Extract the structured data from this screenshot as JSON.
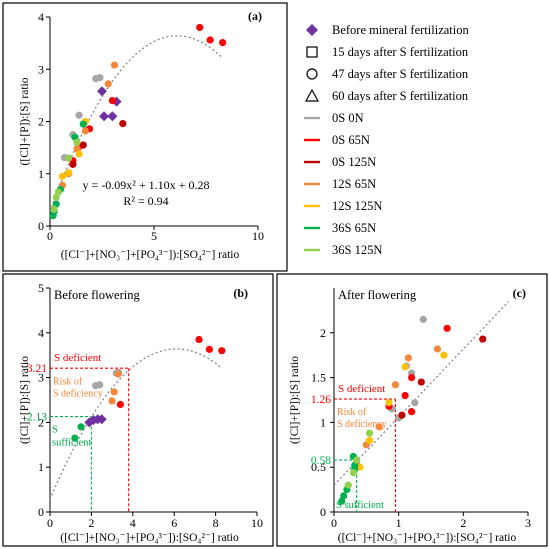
{
  "chart_data": [
    {
      "panel_label": "(a)",
      "type": "scatter",
      "xlabel": "([Cl⁻]+[NO₃⁻]+[PO₄³⁻]):[SO₄²⁻] ratio",
      "ylabel": "([Cl]+[P]):[S] ratio",
      "xlim": [
        0,
        10
      ],
      "ylim": [
        0,
        4
      ],
      "xticks": [
        "0",
        "5",
        "10"
      ],
      "yticks": [
        "0",
        "1",
        "2",
        "3",
        "4"
      ],
      "equation": "y = -0.09x² + 1.10x + 0.28",
      "r2": "R² = 0.94",
      "fit": {
        "a": -0.09,
        "b": 1.1,
        "c": 0.28,
        "x_range": [
          0,
          8.3
        ]
      },
      "series": [
        {
          "name": "Before mineral fertilization",
          "marker": "diamond",
          "color": "#7030a0",
          "points": [
            [
              2.5,
              2.58
            ],
            [
              3.2,
              2.38
            ],
            [
              2.6,
              2.1
            ],
            [
              3.0,
              2.1
            ]
          ]
        },
        {
          "name": "0S 0N",
          "color": "#a6a6a6",
          "points": [
            [
              2.2,
              2.82
            ],
            [
              2.4,
              2.84
            ],
            [
              1.4,
              2.12
            ],
            [
              1.1,
              1.75
            ],
            [
              0.7,
              1.31
            ]
          ]
        },
        {
          "name": "0S 65N",
          "color": "#ff0000",
          "points": [
            [
              7.2,
              3.8
            ],
            [
              7.7,
              3.56
            ],
            [
              8.3,
              3.51
            ],
            [
              3.0,
              2.4
            ],
            [
              1.9,
              1.86
            ],
            [
              1.4,
              1.52
            ],
            [
              1.1,
              1.25
            ]
          ]
        },
        {
          "name": "0S 125N",
          "color": "#c00000",
          "points": [
            [
              3.5,
              1.96
            ],
            [
              1.6,
              1.55
            ],
            [
              1.1,
              1.18
            ]
          ]
        },
        {
          "name": "12S 65N",
          "color": "#f4883a",
          "points": [
            [
              3.1,
              3.08
            ],
            [
              2.8,
              2.72
            ],
            [
              1.7,
              1.82
            ],
            [
              1.3,
              1.48
            ],
            [
              0.9,
              1.0
            ],
            [
              0.6,
              0.78
            ]
          ]
        },
        {
          "name": "12S 125N",
          "color": "#ffc000",
          "points": [
            [
              1.7,
              2.0
            ],
            [
              1.4,
              1.38
            ],
            [
              0.9,
              1.02
            ],
            [
              0.6,
              0.95
            ]
          ]
        },
        {
          "name": "36S 65N",
          "color": "#00b050",
          "points": [
            [
              1.2,
              1.7
            ],
            [
              1.6,
              1.95
            ],
            [
              0.5,
              0.7
            ],
            [
              0.3,
              0.42
            ],
            [
              0.2,
              0.28
            ],
            [
              0.15,
              0.2
            ]
          ]
        },
        {
          "name": "36S 125N",
          "color": "#92d050",
          "points": [
            [
              1.3,
              1.6
            ],
            [
              0.9,
              1.3
            ],
            [
              0.4,
              0.65
            ],
            [
              0.3,
              0.55
            ],
            [
              0.2,
              0.32
            ]
          ]
        }
      ]
    },
    {
      "panel_label": "(b)",
      "title": "Before flowering",
      "type": "scatter",
      "xlabel": "([Cl⁻]+[NO₃⁻]+[PO₄³⁻]):[SO₄²⁻] ratio",
      "ylabel": "([Cl]+[P]):[S] ratio",
      "xlim": [
        0,
        10
      ],
      "ylim": [
        0,
        5
      ],
      "xticks": [
        "0",
        "2",
        "4",
        "6",
        "8",
        "10"
      ],
      "yticks": [
        "0",
        "1",
        "2",
        "3",
        "4",
        "5"
      ],
      "thresholds": [
        {
          "y": 3.21,
          "x": 3.8,
          "label": "3.21",
          "color": "#ff0000",
          "region": "S deficient"
        },
        {
          "y": 2.13,
          "x": 2.0,
          "label": "2.13",
          "color": "#00b050",
          "region": "S sufficient"
        }
      ],
      "middle_region": "Risk of S deficiency",
      "series": [
        {
          "name": "Before mineral fertilization",
          "marker": "diamond",
          "color": "#7030a0",
          "points": [
            [
              1.9,
              2.0
            ],
            [
              2.1,
              2.05
            ],
            [
              2.3,
              2.07
            ],
            [
              2.5,
              2.07
            ]
          ]
        },
        {
          "name": "0S 0N",
          "color": "#a6a6a6",
          "points": [
            [
              2.2,
              2.82
            ],
            [
              2.4,
              2.84
            ],
            [
              3.2,
              3.1
            ],
            [
              3.3,
              3.12
            ]
          ]
        },
        {
          "name": "0S 65N",
          "color": "#ff0000",
          "points": [
            [
              7.2,
              3.85
            ],
            [
              7.7,
              3.63
            ],
            [
              8.3,
              3.6
            ],
            [
              3.4,
              2.4
            ]
          ]
        },
        {
          "name": "12S 65N",
          "color": "#f4883a",
          "points": [
            [
              3.3,
              3.08
            ],
            [
              3.1,
              2.68
            ],
            [
              3.0,
              2.48
            ]
          ]
        },
        {
          "name": "36S 65N",
          "color": "#00b050",
          "points": [
            [
              1.2,
              1.65
            ],
            [
              1.5,
              1.9
            ]
          ]
        }
      ]
    },
    {
      "panel_label": "(c)",
      "title": "After flowering",
      "type": "scatter",
      "xlabel": "([Cl⁻]+[NO₃⁻]+[PO₄³⁻]):[SO₄²⁻] ratio",
      "ylabel": "([Cl]+[P]):[S] ratio",
      "xlim": [
        0,
        3
      ],
      "ylim": [
        0,
        2.5
      ],
      "xticks": [
        "0",
        "1",
        "2",
        "3"
      ],
      "yticks": [
        "0",
        "0.5",
        "1",
        "1.5",
        "2"
      ],
      "thresholds": [
        {
          "y": 1.26,
          "x": 0.95,
          "label": "1.26",
          "color": "#ff0000",
          "region": "S deficient"
        },
        {
          "y": 0.58,
          "x": 0.35,
          "label": "0.58",
          "color": "#00b050",
          "region": "S sufficient"
        }
      ],
      "middle_region": "Risk of S deficiency",
      "series": [
        {
          "name": "0S 0N",
          "color": "#a6a6a6",
          "points": [
            [
              1.38,
              2.15
            ],
            [
              1.12,
              1.63
            ],
            [
              1.2,
              1.55
            ],
            [
              1.25,
              1.22
            ],
            [
              0.9,
              1.15
            ],
            [
              1.0,
              1.05
            ]
          ]
        },
        {
          "name": "0S 65N",
          "color": "#ff0000",
          "points": [
            [
              1.75,
              2.05
            ],
            [
              1.2,
              1.5
            ],
            [
              1.1,
              1.3
            ],
            [
              1.2,
              1.12
            ],
            [
              0.85,
              1.18
            ]
          ]
        },
        {
          "name": "0S 125N",
          "color": "#c00000",
          "points": [
            [
              2.3,
              1.93
            ],
            [
              1.35,
              1.45
            ],
            [
              1.05,
              1.08
            ]
          ]
        },
        {
          "name": "12S 65N",
          "color": "#f4883a",
          "points": [
            [
              1.6,
              1.82
            ],
            [
              1.15,
              1.72
            ],
            [
              0.95,
              1.42
            ],
            [
              0.7,
              0.95
            ],
            [
              0.5,
              0.75
            ],
            [
              0.35,
              0.55
            ]
          ]
        },
        {
          "name": "12S 125N",
          "color": "#ffc000",
          "points": [
            [
              1.7,
              1.75
            ],
            [
              1.1,
              1.62
            ],
            [
              0.85,
              1.22
            ],
            [
              0.55,
              0.8
            ],
            [
              0.4,
              0.5
            ]
          ]
        },
        {
          "name": "36S 65N",
          "color": "#00b050",
          "points": [
            [
              0.3,
              0.62
            ],
            [
              0.32,
              0.52
            ],
            [
              0.2,
              0.25
            ],
            [
              0.15,
              0.18
            ],
            [
              0.12,
              0.12
            ],
            [
              0.32,
              0.48
            ]
          ]
        },
        {
          "name": "36S 125N",
          "color": "#92d050",
          "points": [
            [
              0.55,
              0.88
            ],
            [
              0.35,
              0.58
            ],
            [
              0.3,
              0.44
            ],
            [
              0.22,
              0.3
            ]
          ]
        }
      ]
    }
  ],
  "legend": [
    {
      "label": "Before mineral fertilization",
      "marker": "diamond",
      "color": "#7030a0"
    },
    {
      "label": "15 days after S fertilization",
      "marker": "square-open",
      "color": "#000000"
    },
    {
      "label": "47 days after S fertilization",
      "marker": "circle-open",
      "color": "#000000"
    },
    {
      "label": "60 days after S fertilization",
      "marker": "triangle-open",
      "color": "#000000"
    },
    {
      "label": "0S 0N",
      "marker": "line",
      "color": "#a6a6a6"
    },
    {
      "label": "0S 65N",
      "marker": "line",
      "color": "#ff0000"
    },
    {
      "label": "0S 125N",
      "marker": "line",
      "color": "#c00000"
    },
    {
      "label": "12S 65N",
      "marker": "line",
      "color": "#f4883a"
    },
    {
      "label": "12S 125N",
      "marker": "line",
      "color": "#ffc000"
    },
    {
      "label": "36S 65N",
      "marker": "line",
      "color": "#00b050"
    },
    {
      "label": "36S 125N",
      "marker": "line",
      "color": "#92d050"
    }
  ]
}
